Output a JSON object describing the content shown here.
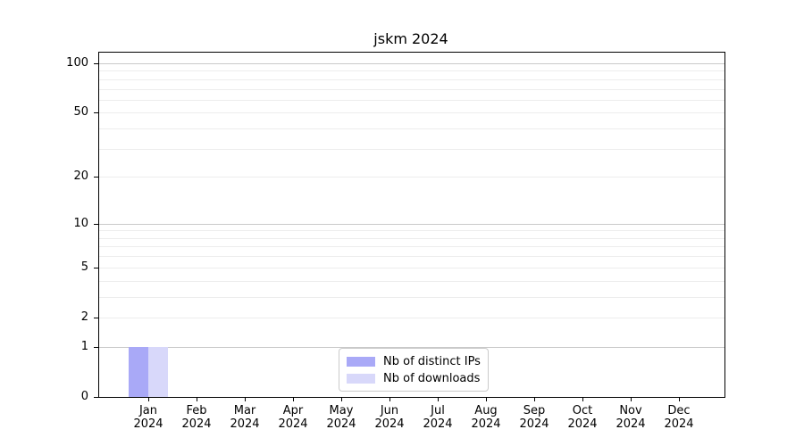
{
  "chart_data": {
    "type": "bar",
    "title": "jskm 2024",
    "x_axis": {
      "categories": [
        {
          "month": "Jan",
          "year": "2024"
        },
        {
          "month": "Feb",
          "year": "2024"
        },
        {
          "month": "Mar",
          "year": "2024"
        },
        {
          "month": "Apr",
          "year": "2024"
        },
        {
          "month": "May",
          "year": "2024"
        },
        {
          "month": "Jun",
          "year": "2024"
        },
        {
          "month": "Jul",
          "year": "2024"
        },
        {
          "month": "Aug",
          "year": "2024"
        },
        {
          "month": "Sep",
          "year": "2024"
        },
        {
          "month": "Oct",
          "year": "2024"
        },
        {
          "month": "Nov",
          "year": "2024"
        },
        {
          "month": "Dec",
          "year": "2024"
        }
      ]
    },
    "y_axis": {
      "scale": "log10(value+1)",
      "ticks": [
        0,
        1,
        2,
        5,
        10,
        20,
        50,
        100
      ],
      "minor_ticks": [
        3,
        4,
        6,
        7,
        8,
        9,
        30,
        40,
        60,
        70,
        80,
        90
      ],
      "major_gridline_values": [
        1,
        10,
        100
      ],
      "ylim": [
        0,
        116
      ]
    },
    "series": [
      {
        "name": "Nb of distinct IPs",
        "color": "#a9a9f7",
        "values": [
          1,
          0,
          0,
          0,
          0,
          0,
          0,
          0,
          0,
          0,
          0,
          0
        ]
      },
      {
        "name": "Nb of downloads",
        "color": "#d8d8fa",
        "values": [
          1,
          0,
          0,
          0,
          0,
          0,
          0,
          0,
          0,
          0,
          0,
          0
        ]
      }
    ],
    "legend": {
      "position": "lower center"
    },
    "colors": {
      "grid_major": "#c9c9c9",
      "grid_minor": "#ededed",
      "axis": "#000000",
      "background": "#ffffff"
    }
  }
}
